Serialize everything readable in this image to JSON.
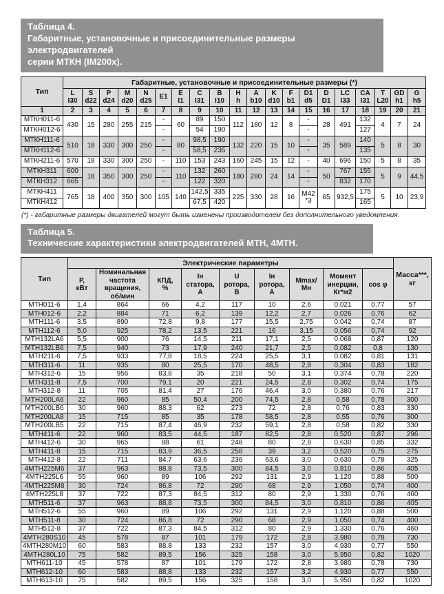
{
  "colors": {
    "title_bar_bg": "#909090",
    "title_bar_text": "#ffffff",
    "header_bg": "#dcdcdc",
    "shaded_row_bg": "#d6d6d6",
    "border": "#1b1b1b"
  },
  "table4": {
    "title_lines": [
      "Таблица  4.",
      "Габаритные, установочные и присоединительные размеры электродвигателей",
      "серии МТКН (IM200x)."
    ],
    "footnote": "(*) - габаритные размеры двигателей могут быть изменены производителем без дополнительного уведомления.",
    "header": [
      {
        "cells": [
          {
            "t": "Тип",
            "rs": 2
          },
          {
            "t": "Габаритные, установочные и присоединительные размеры (*)",
            "cs": 20
          }
        ]
      },
      {
        "cells": [
          "L|I30",
          "S|d22",
          "P|d24",
          "M|d20",
          "N|d25",
          "E1",
          "E|I1",
          "C|I31",
          "B|I10",
          "H|h",
          "A|b10",
          "K|d10",
          "F|b1",
          "D1|d5",
          "D|D1",
          "LC|I33",
          "CA|I31",
          "T|L20",
          "GD|h1",
          "G|h5"
        ]
      },
      {
        "cells": [
          "1",
          "2",
          "3",
          "4",
          "5",
          "6",
          "7",
          "8",
          "9",
          "10",
          "11",
          "12",
          "13",
          "14",
          "15",
          "16",
          "17",
          "18",
          "19",
          "20",
          "21"
        ]
      }
    ],
    "rows": [
      {
        "shaded": false,
        "cells": [
          "МТКН011-6",
          {
            "t": "430",
            "rs": 2
          },
          {
            "t": "15",
            "rs": 2
          },
          {
            "t": "280",
            "rs": 2
          },
          {
            "t": "255",
            "rs": 2
          },
          {
            "t": "215",
            "rs": 2
          },
          "-",
          {
            "t": "60",
            "rs": 2
          },
          "89",
          "150",
          {
            "t": "112",
            "rs": 2
          },
          {
            "t": "180",
            "rs": 2
          },
          {
            "t": "12",
            "rs": 2
          },
          {
            "t": "8",
            "rs": 2
          },
          "-",
          {
            "t": "28",
            "rs": 2
          },
          {
            "t": "491",
            "rs": 2
          },
          "132",
          {
            "t": "4",
            "rs": 2
          },
          {
            "t": "7",
            "rs": 2
          },
          {
            "t": "24",
            "rs": 2
          }
        ]
      },
      {
        "shaded": false,
        "cells": [
          "МТКН012-6",
          "-",
          "54",
          "190",
          "-",
          "127"
        ]
      },
      {
        "shaded": true,
        "cells": [
          "МТКН111-6",
          {
            "t": "510",
            "rs": 2
          },
          {
            "t": "18",
            "rs": 2
          },
          {
            "t": "330",
            "rs": 2
          },
          {
            "t": "300",
            "rs": 2
          },
          {
            "t": "250",
            "rs": 2
          },
          "-",
          {
            "t": "80",
            "rs": 2
          },
          "98,5",
          "190",
          {
            "t": "132",
            "rs": 2
          },
          {
            "t": "220",
            "rs": 2
          },
          {
            "t": "15",
            "rs": 2
          },
          {
            "t": "10",
            "rs": 2
          },
          "-",
          {
            "t": "35",
            "rs": 2
          },
          {
            "t": "589",
            "rs": 2
          },
          "140",
          {
            "t": "5",
            "rs": 2
          },
          {
            "t": "8",
            "rs": 2
          },
          {
            "t": "30",
            "rs": 2
          }
        ]
      },
      {
        "shaded": true,
        "cells": [
          "МТКН112-6",
          "-",
          "58,5",
          "235",
          "-",
          "135"
        ]
      },
      {
        "shaded": false,
        "cells": [
          "МТКН211-6",
          "570",
          "18",
          "330",
          "300",
          "250",
          "-",
          "110",
          "153",
          "243",
          "160",
          "245",
          "15",
          "12",
          "-",
          "40",
          "696",
          "150",
          "5",
          "8",
          "35"
        ]
      },
      {
        "shaded": true,
        "cells": [
          "МТКН311",
          "600",
          {
            "t": "18",
            "rs": 2
          },
          {
            "t": "350",
            "rs": 2
          },
          {
            "t": "300",
            "rs": 2
          },
          {
            "t": "250",
            "rs": 2
          },
          "-",
          {
            "t": "110",
            "rs": 2
          },
          "132",
          "260",
          {
            "t": "180",
            "rs": 2
          },
          {
            "t": "280",
            "rs": 2
          },
          {
            "t": "24",
            "rs": 2
          },
          {
            "t": "14",
            "rs": 2
          },
          "-",
          {
            "t": "50",
            "rs": 2
          },
          "767",
          "155",
          {
            "t": "5",
            "rs": 2
          },
          {
            "t": "9",
            "rs": 2
          },
          {
            "t": "44,5",
            "rs": 2
          }
        ]
      },
      {
        "shaded": true,
        "cells": [
          "МТКН312",
          "665",
          "-",
          "122",
          "320",
          "-",
          "832",
          "170"
        ]
      },
      {
        "shaded": false,
        "cells": [
          "МТКН411",
          {
            "t": "765",
            "rs": 2
          },
          {
            "t": "18",
            "rs": 2
          },
          {
            "t": "400",
            "rs": 2
          },
          {
            "t": "350",
            "rs": 2
          },
          {
            "t": "300",
            "rs": 2
          },
          {
            "t": "105",
            "rs": 2
          },
          {
            "t": "140",
            "rs": 2
          },
          "142,5",
          "335",
          {
            "t": "225",
            "rs": 2
          },
          {
            "t": "330",
            "rs": 2
          },
          {
            "t": "28",
            "rs": 2
          },
          {
            "t": "16",
            "rs": 2
          },
          {
            "t": "M42|*3",
            "rs": 2
          },
          {
            "t": "65",
            "rs": 2
          },
          {
            "t": "932,5",
            "rs": 2
          },
          "175",
          {
            "t": "5",
            "rs": 2
          },
          {
            "t": "10",
            "rs": 2
          },
          {
            "t": "23,9",
            "rs": 2
          }
        ]
      },
      {
        "shaded": false,
        "cells": [
          "МТКН412",
          "67,5",
          "420",
          "165"
        ]
      }
    ]
  },
  "table5": {
    "title_lines": [
      "Таблица  5.",
      "Технические характеристики электродвигателей МТН, 4МТН."
    ],
    "header": [
      {
        "cells": [
          {
            "t": "Тип",
            "rs": 2
          },
          {
            "t": "Электрические параметры",
            "cs": 9
          },
          {
            "t": "Масса***,|кг",
            "rs": 2
          }
        ]
      },
      {
        "cells": [
          "Р,|кВт",
          "Номинальная|частота|вращения,|об/мин",
          "КПД,|%",
          "Iн|статора,|А",
          "U|ротора,|В",
          "Iн|ротора,|А",
          "Mmax/|Мн",
          "Момент|инерции,|Кг*м2",
          "cos φ"
        ]
      }
    ],
    "rows": [
      [
        "МТН011-6",
        "1,4",
        "864",
        "66",
        "4,2",
        "117",
        "10",
        "2,6",
        "0,021",
        "0,77",
        "57"
      ],
      [
        "МТН012-6",
        "2,2",
        "884",
        "71",
        "6,2",
        "139",
        "12,2",
        "2,7",
        "0,026",
        "0,76",
        "62"
      ],
      [
        "МТН111-6",
        "3,5",
        "890",
        "72,8",
        "9,8",
        "177",
        "15,5",
        "2,75",
        "0,042",
        "0,74",
        "87"
      ],
      [
        "МТН112-6",
        "5,0",
        "925",
        "78,2",
        "13,5",
        "221",
        "16",
        "3,15",
        "0,056",
        "0,74",
        "92"
      ],
      [
        "МТН132LA6",
        "5,5",
        "900",
        "76",
        "14,5",
        "211",
        "17,1",
        "2,5",
        "0,068",
        "0,87",
        "120"
      ],
      [
        "МТН132LB6",
        "7,5",
        "940",
        "73",
        "17,9",
        "240",
        "21,7",
        "2,5",
        "0,082",
        "0,8",
        "130"
      ],
      [
        "МТН211-6",
        "7,5",
        "933",
        "77,8",
        "18,5",
        "224",
        "25,5",
        "3,1",
        "0,082",
        "0,81",
        "131"
      ],
      [
        "МТН311-6",
        "11",
        "935",
        "80",
        "25,5",
        "170",
        "48,5",
        "2,8",
        "0,304",
        "0,83",
        "182"
      ],
      [
        "МТН312-6",
        "15",
        "956",
        "83,8",
        "35",
        "218",
        "50",
        "3,1",
        "0,374",
        "0,78",
        "220"
      ],
      [
        "МТН311-8",
        "7,5",
        "700",
        "79,1",
        "20",
        "221",
        "24,5",
        "2,8",
        "0,302",
        "0,74",
        "175"
      ],
      [
        "МТН312-8",
        "11",
        "705",
        "81,4",
        "27",
        "176",
        "46,4",
        "3,0",
        "0,380",
        "0,76",
        "217"
      ],
      [
        "МТН200LA6",
        "22",
        "960",
        "85",
        "50,4",
        "200",
        "74,5",
        "2,8",
        "0,58",
        "0,78",
        "300"
      ],
      [
        "МТН200LB6",
        "30",
        "960",
        "88,3",
        "62",
        "273",
        "72",
        "2,8",
        "0,76",
        "0,83",
        "330"
      ],
      [
        "МТН200LA8",
        "15",
        "715",
        "85",
        "35",
        "178",
        "58,5",
        "2,8",
        "0,55",
        "0,76",
        "300"
      ],
      [
        "МТН200LB5",
        "22",
        "715",
        "87,4",
        "46,9",
        "232",
        "59,1",
        "2,8",
        "0,58",
        "0,82",
        "330"
      ],
      [
        "МТН411-6",
        "22",
        "960",
        "83,5",
        "44,5",
        "187",
        "82,5",
        "2,8",
        "0,520",
        "0,87",
        "296"
      ],
      [
        "МТН412-6",
        "30",
        "965",
        "88",
        "61",
        "248",
        "80",
        "2,8",
        "0,630",
        "0,85",
        "332"
      ],
      [
        "МТН411-8",
        "15",
        "715",
        "83,9",
        "36,5",
        "258",
        "39",
        "3,2",
        "0,520",
        "0,75",
        "275"
      ],
      [
        "МТН412-8",
        "22",
        "711",
        "84,7",
        "63,6",
        "236",
        "63,6",
        "3,0",
        "0,630",
        "0,78",
        "325"
      ],
      [
        "4МТН225M6",
        "37",
        "963",
        "88,8",
        "73,5",
        "300",
        "84,5",
        "3,0",
        "0,810",
        "0,86",
        "405"
      ],
      [
        "4МТН225L6",
        "55",
        "960",
        "89",
        "106",
        "292",
        "131",
        "2,9",
        "1,120",
        "0,88",
        "500"
      ],
      [
        "4МТН225M8",
        "30",
        "724",
        "86,8",
        "72",
        "290",
        "68",
        "2,9",
        "1,050",
        "0,74",
        "400"
      ],
      [
        "4МТН225L8",
        "37",
        "722",
        "87,3",
        "84,5",
        "312",
        "80",
        "2,9",
        "1,330",
        "0,76",
        "460"
      ],
      [
        "МТН511-6",
        "37",
        "963",
        "88,8",
        "73,5",
        "300",
        "84,5",
        "3,0",
        "0,810",
        "0,86",
        "405"
      ],
      [
        "МТН512-6",
        "55",
        "960",
        "89",
        "106",
        "292",
        "131",
        "2,9",
        "1,120",
        "0,88",
        "500"
      ],
      [
        "МТН511-8",
        "30",
        "724",
        "86,8",
        "72",
        "290",
        "68",
        "2,9",
        "1,050",
        "0,74",
        "400"
      ],
      [
        "МТН512-8",
        "37",
        "722",
        "87,3",
        "84,5",
        "312",
        "80",
        "2,9",
        "1,330",
        "0,76",
        "460"
      ],
      [
        "4МТН280S10",
        "45",
        "578",
        "87",
        "101",
        "179",
        "172",
        "2,8",
        "3,980",
        "0,78",
        "730"
      ],
      [
        "4МТН280M10",
        "60",
        "583",
        "88,8",
        "133",
        "232",
        "157",
        "3,0",
        "4,930",
        "0,77",
        "550"
      ],
      [
        "4МТН280L10",
        "75",
        "582",
        "89,5",
        "156",
        "325",
        "158",
        "3,0",
        "5,950",
        "0,82",
        "1020"
      ],
      [
        "МТН611-10",
        "45",
        "578",
        "87",
        "101",
        "179",
        "172",
        "2,8",
        "3,980",
        "0,78",
        "730"
      ],
      [
        "МТН612-10",
        "60",
        "583",
        "88,8",
        "133",
        "232",
        "157",
        "3,2",
        "4,930",
        "0,77",
        "550"
      ],
      [
        "МТН613-10",
        "75",
        "582",
        "89,5",
        "156",
        "325",
        "158",
        "3,0",
        "5,950",
        "0,82",
        "1020"
      ]
    ]
  }
}
